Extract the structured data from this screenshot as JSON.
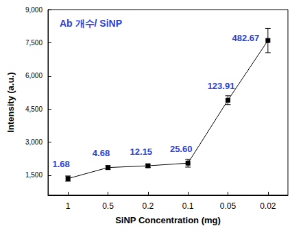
{
  "chart_data": {
    "type": "line",
    "title": "Ab 개수/ SiNP",
    "x_label": "SiNP Concentration (mg)",
    "y_label": "Intensity (a.u.)",
    "categories": [
      "1",
      "0.5",
      "0.2",
      "0.1",
      "0.05",
      "0.02"
    ],
    "values": [
      1350,
      1850,
      1930,
      2050,
      4900,
      7600
    ],
    "errors": [
      120,
      80,
      70,
      180,
      200,
      550
    ],
    "annotations": [
      "1.68",
      "4.68",
      "12.15",
      "25.60",
      "123.91",
      "482.67"
    ],
    "color": "#000000",
    "marker": "square",
    "ylim": [
      600,
      9000
    ],
    "yticks": [
      1500,
      3000,
      4500,
      6000,
      7500,
      9000
    ],
    "grid": false
  }
}
